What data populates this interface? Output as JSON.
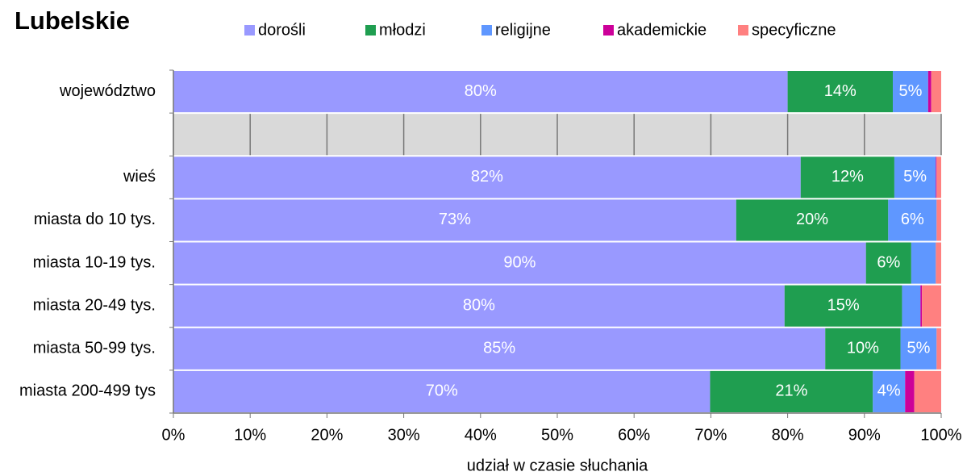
{
  "chart_data": {
    "type": "stacked-barh",
    "title": "Lubelskie",
    "x_label": "udział w czasie słuchania",
    "categories": [
      "województwo",
      null,
      "wieś",
      "miasta do 10 tys.",
      "miasta 10-19 tys.",
      "miasta 20-49 tys.",
      "miasta 50-99 tys.",
      "miasta 200-499 tys"
    ],
    "series": [
      {
        "name": "dorośli",
        "color": "#9999ff",
        "values": [
          80,
          null,
          81.7,
          73.3,
          90.2,
          79.6,
          84.9,
          69.9
        ],
        "value_labels": [
          "80%",
          null,
          "82%",
          "73%",
          "90%",
          "80%",
          "85%",
          "70%"
        ]
      },
      {
        "name": "młodzi",
        "color": "#1f9e50",
        "values": [
          13.7,
          null,
          12.2,
          19.8,
          5.9,
          15.3,
          9.8,
          21.2
        ],
        "value_labels": [
          "14%",
          null,
          "12%",
          "20%",
          "6%",
          "15%",
          "10%",
          "21%"
        ]
      },
      {
        "name": "religijne",
        "color": "#5f97ff",
        "values": [
          4.6,
          null,
          5.4,
          6.3,
          3.2,
          2.4,
          4.7,
          4.2
        ],
        "value_labels": [
          "5%",
          null,
          "5%",
          "6%",
          null,
          null,
          "5%",
          "4%"
        ]
      },
      {
        "name": "akademickie",
        "color": "#cc0099",
        "values": [
          0.4,
          null,
          0.1,
          0,
          0,
          0.2,
          0,
          1.2
        ]
      },
      {
        "name": "specyficzne",
        "color": "#ff8080",
        "values": [
          1.3,
          null,
          0.6,
          0.6,
          0.7,
          2.5,
          0.6,
          3.5
        ]
      }
    ],
    "xlim": [
      0,
      100
    ],
    "xticks": [
      {
        "value": 0,
        "label": "0%"
      },
      {
        "value": 10,
        "label": "10%"
      },
      {
        "value": 20,
        "label": "20%"
      },
      {
        "value": 30,
        "label": "30%"
      },
      {
        "value": 40,
        "label": "40%"
      },
      {
        "value": 50,
        "label": "50%"
      },
      {
        "value": 60,
        "label": "60%"
      },
      {
        "value": 70,
        "label": "70%"
      },
      {
        "value": 80,
        "label": "80%"
      },
      {
        "value": 90,
        "label": "90%"
      },
      {
        "value": 100,
        "label": "100%"
      }
    ],
    "legend": "top"
  }
}
